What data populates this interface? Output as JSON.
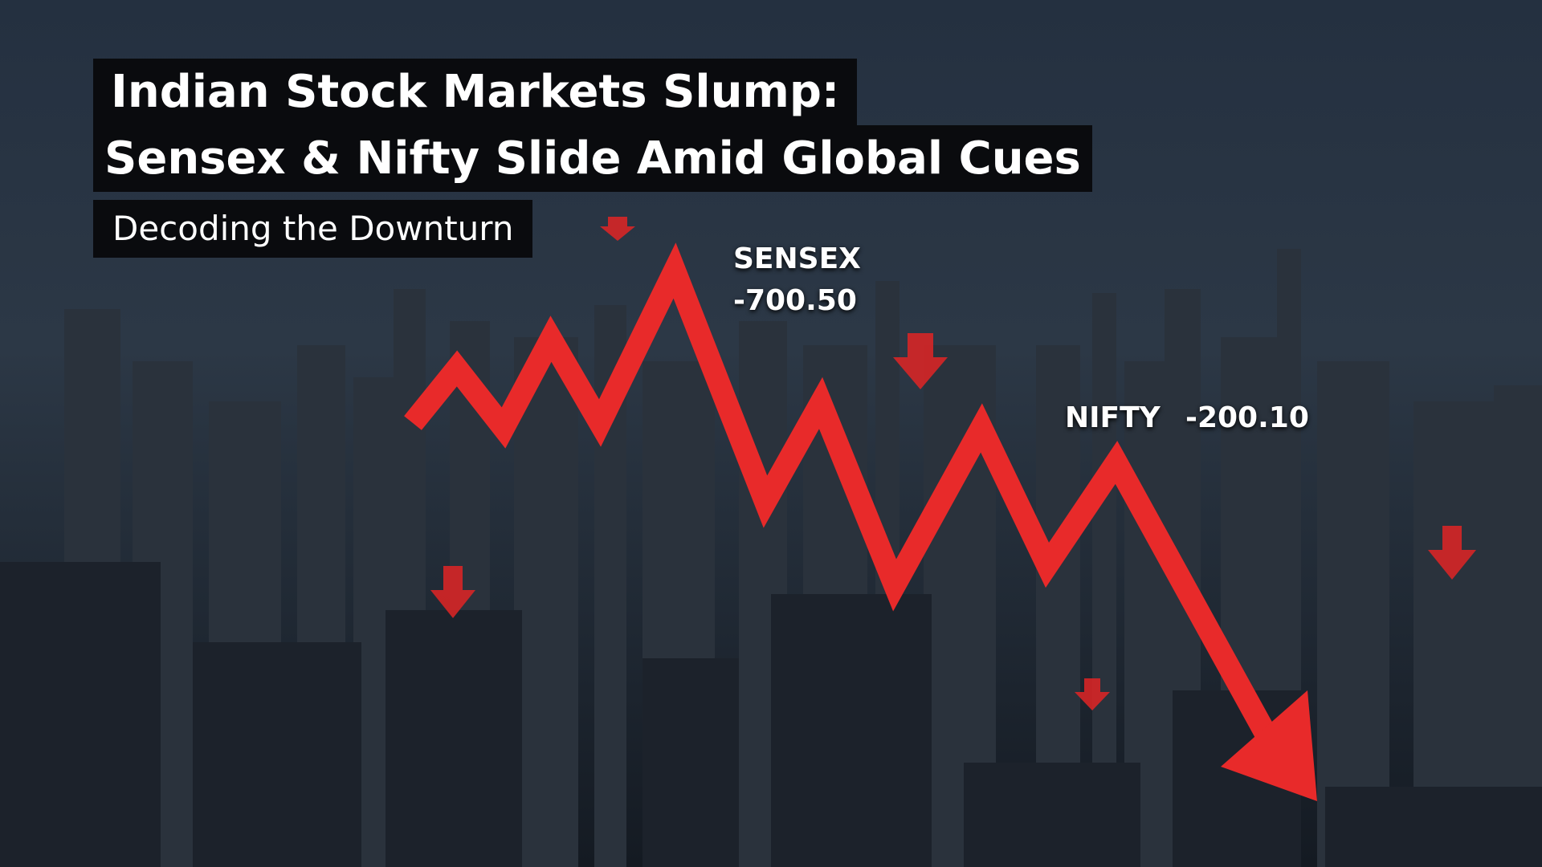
{
  "header": {
    "title_lines": [
      "Indian Stock Markets Slump:",
      "Sensex & Nifty Slide Amid Global Cues"
    ],
    "subtitle": "Decoding the Downturn"
  },
  "labels": {
    "sensex": {
      "name": "SENSEX",
      "change": "-700.50"
    },
    "nifty": {
      "name": "NIFTY",
      "change": "-200.10"
    }
  }
}
